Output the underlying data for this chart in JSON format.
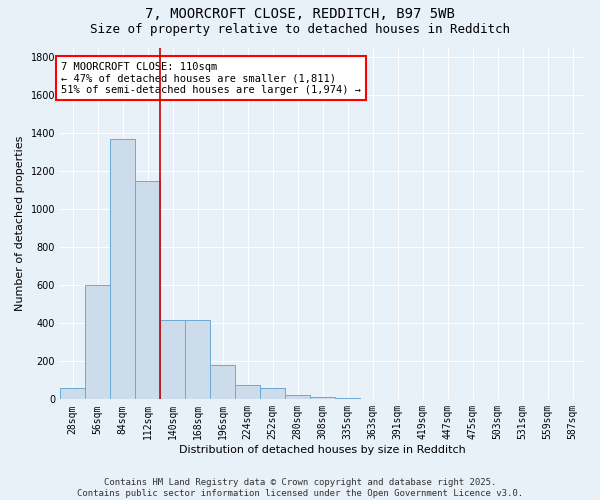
{
  "title_line1": "7, MOORCROFT CLOSE, REDDITCH, B97 5WB",
  "title_line2": "Size of property relative to detached houses in Redditch",
  "xlabel": "Distribution of detached houses by size in Redditch",
  "ylabel": "Number of detached properties",
  "bar_color": "#cddceb",
  "bar_edge_color": "#6aaad4",
  "background_color": "#e8f0f8",
  "grid_color": "#ffffff",
  "vline_color": "#cc0000",
  "categories": [
    "28sqm",
    "56sqm",
    "84sqm",
    "112sqm",
    "140sqm",
    "168sqm",
    "196sqm",
    "224sqm",
    "252sqm",
    "280sqm",
    "308sqm",
    "335sqm",
    "363sqm",
    "391sqm",
    "419sqm",
    "447sqm",
    "475sqm",
    "503sqm",
    "531sqm",
    "559sqm",
    "587sqm"
  ],
  "values": [
    60,
    600,
    1370,
    1150,
    415,
    415,
    180,
    75,
    60,
    25,
    10,
    5,
    0,
    0,
    0,
    0,
    0,
    0,
    0,
    0,
    0
  ],
  "ylim": [
    0,
    1850
  ],
  "yticks": [
    0,
    200,
    400,
    600,
    800,
    1000,
    1200,
    1400,
    1600,
    1800
  ],
  "vline_index": 3.5,
  "annotation_text": "7 MOORCROFT CLOSE: 110sqm\n← 47% of detached houses are smaller (1,811)\n51% of semi-detached houses are larger (1,974) →",
  "footer_text": "Contains HM Land Registry data © Crown copyright and database right 2025.\nContains public sector information licensed under the Open Government Licence v3.0.",
  "title_fontsize": 10,
  "subtitle_fontsize": 9,
  "axis_label_fontsize": 8,
  "tick_fontsize": 7,
  "annotation_fontsize": 7.5,
  "footer_fontsize": 6.5
}
